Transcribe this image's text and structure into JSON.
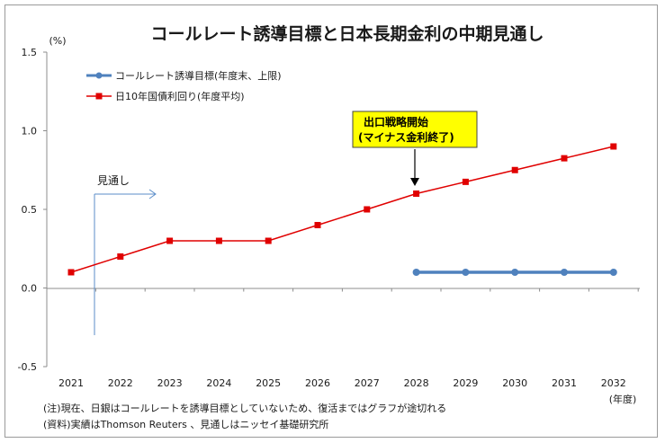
{
  "chart_data": {
    "type": "line",
    "title": "コールレート誘導目標と日本長期金利の中期見通し",
    "ylabel": "(%)",
    "xlabel": "(年度)",
    "categories": [
      "2021",
      "2022",
      "2023",
      "2024",
      "2025",
      "2026",
      "2027",
      "2028",
      "2029",
      "2030",
      "2031",
      "2032"
    ],
    "ylim": [
      -0.5,
      1.5
    ],
    "yticks": [
      "1.5",
      "1.0",
      "0.5",
      "0.0",
      "-0.5"
    ],
    "grid": false,
    "legend_position": "top-left",
    "series": [
      {
        "name": "コールレート誘導目標(年度末、上限)",
        "color": "#4f81bd",
        "marker": "circle",
        "values": [
          null,
          null,
          null,
          null,
          null,
          null,
          null,
          0.1,
          0.1,
          0.1,
          0.1,
          0.1
        ]
      },
      {
        "name": "日10年国債利回り(年度平均)",
        "color": "#e00000",
        "marker": "square",
        "values": [
          0.1,
          0.2,
          0.3,
          0.3,
          0.3,
          0.4,
          0.5,
          0.6,
          0.675,
          0.75,
          0.825,
          0.9
        ]
      }
    ],
    "annotations": {
      "forecast_label": "見通し",
      "callout_line1": "出口戦略開始",
      "callout_line2": "(マイナス金利終了)"
    },
    "notes": [
      "(注)現在、日銀はコールレートを誘導目標としていないため、復活まではグラフが途切れる",
      "(資料)実績はThomson Reuters 、見通しはニッセイ基礎研究所"
    ]
  }
}
